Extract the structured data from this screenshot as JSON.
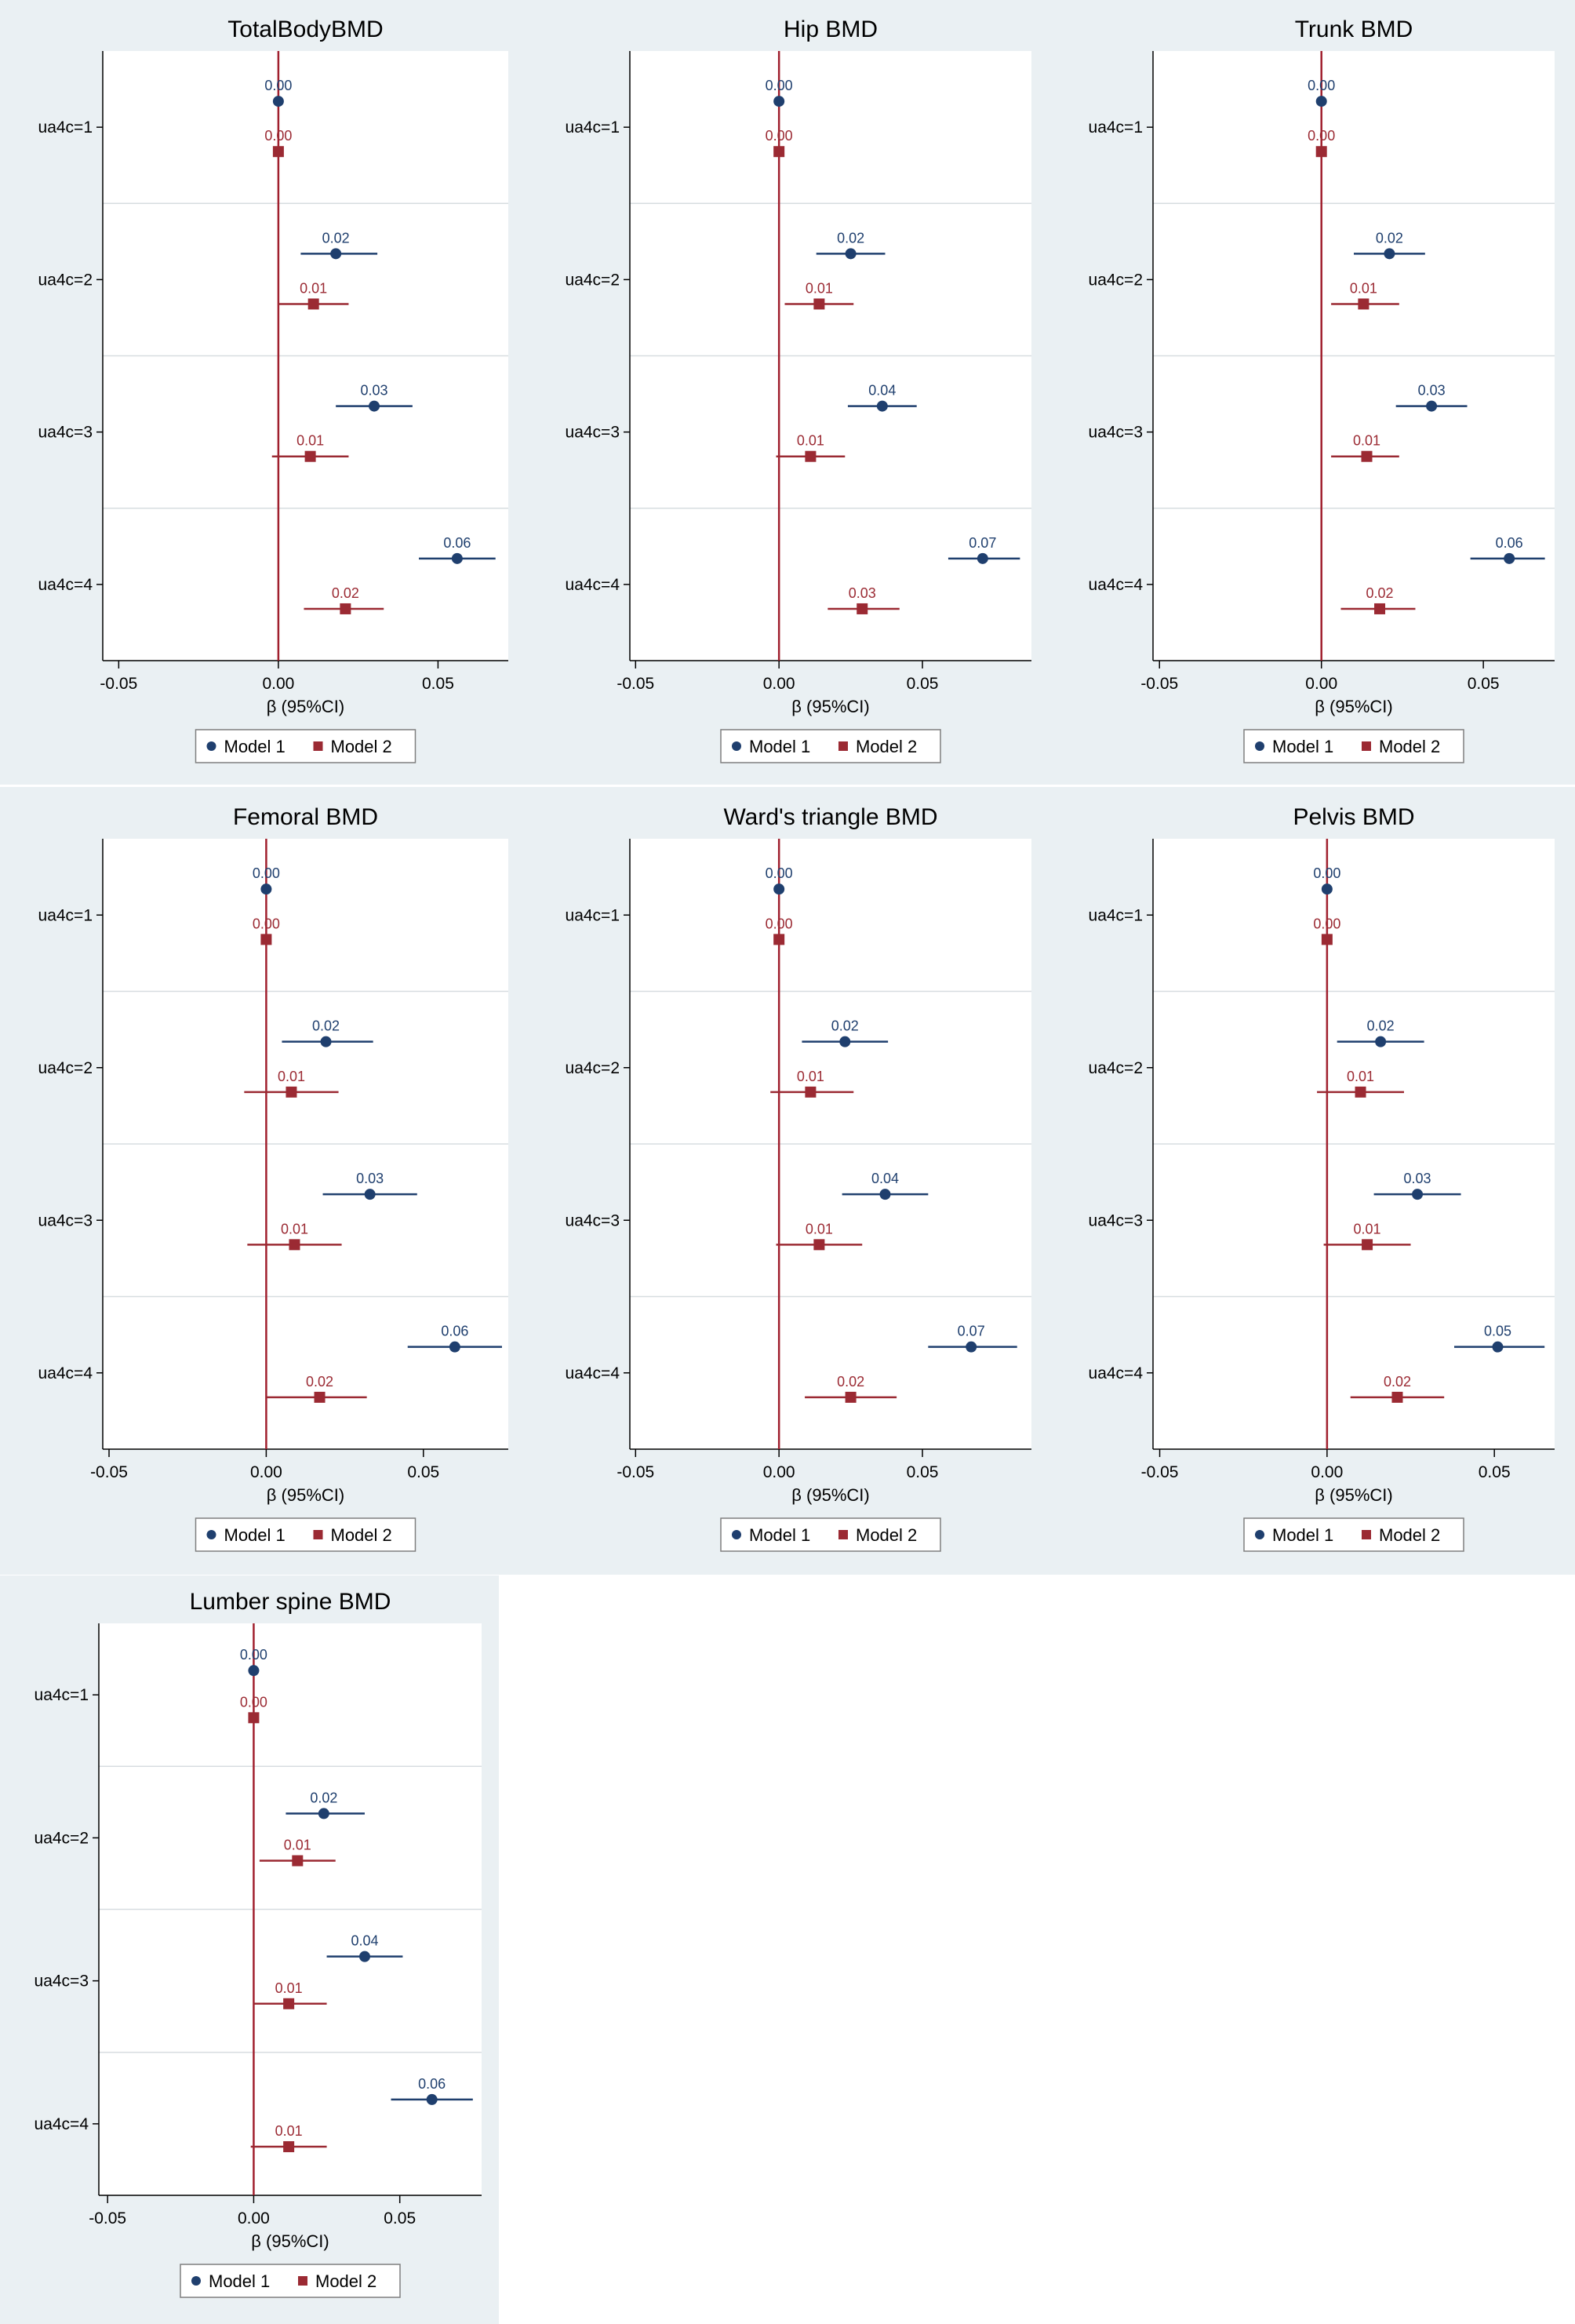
{
  "colors": {
    "model1": "#1f3f6e",
    "model2": "#9b2a33",
    "reference": "#a0202e"
  },
  "chart_data": [
    {
      "type": "forest",
      "title": "TotalBodyBMD",
      "xlabel": "β (95%CI)",
      "xlim": [
        -0.055,
        0.072
      ],
      "xticks": [
        -0.05,
        0.0,
        0.05
      ],
      "xtick_labels": [
        "-0.05",
        "0.00",
        "0.05"
      ],
      "categories": [
        "ua4c=1",
        "ua4c=2",
        "ua4c=3",
        "ua4c=4"
      ],
      "legend": [
        "Model 1",
        "Model 2"
      ],
      "series": [
        {
          "name": "Model 1",
          "marker": "circle",
          "values": [
            0.0,
            0.018,
            0.03,
            0.056
          ],
          "ci_low": [
            0.0,
            0.007,
            0.018,
            0.044
          ],
          "ci_high": [
            0.0,
            0.031,
            0.042,
            0.068
          ],
          "labels": [
            "0.00",
            "0.02",
            "0.03",
            "0.06"
          ]
        },
        {
          "name": "Model 2",
          "marker": "square",
          "values": [
            0.0,
            0.011,
            0.01,
            0.021
          ],
          "ci_low": [
            0.0,
            0.0,
            -0.002,
            0.008
          ],
          "ci_high": [
            0.0,
            0.022,
            0.022,
            0.033
          ],
          "labels": [
            "0.00",
            "0.01",
            "0.01",
            "0.02"
          ]
        }
      ]
    },
    {
      "type": "forest",
      "title": "Hip BMD",
      "xlabel": "β (95%CI)",
      "xlim": [
        -0.052,
        0.088
      ],
      "xticks": [
        -0.05,
        0.0,
        0.05
      ],
      "xtick_labels": [
        "-0.05",
        "0.00",
        "0.05"
      ],
      "categories": [
        "ua4c=1",
        "ua4c=2",
        "ua4c=3",
        "ua4c=4"
      ],
      "legend": [
        "Model 1",
        "Model 2"
      ],
      "series": [
        {
          "name": "Model 1",
          "marker": "circle",
          "values": [
            0.0,
            0.025,
            0.036,
            0.071
          ],
          "ci_low": [
            0.0,
            0.013,
            0.024,
            0.059
          ],
          "ci_high": [
            0.0,
            0.037,
            0.048,
            0.084
          ],
          "labels": [
            "0.00",
            "0.02",
            "0.04",
            "0.07"
          ]
        },
        {
          "name": "Model 2",
          "marker": "square",
          "values": [
            0.0,
            0.014,
            0.011,
            0.029
          ],
          "ci_low": [
            0.0,
            0.002,
            -0.001,
            0.017
          ],
          "ci_high": [
            0.0,
            0.026,
            0.023,
            0.042
          ],
          "labels": [
            "0.00",
            "0.01",
            "0.01",
            "0.03"
          ]
        }
      ]
    },
    {
      "type": "forest",
      "title": "Trunk BMD",
      "xlabel": "β (95%CI)",
      "xlim": [
        -0.052,
        0.072
      ],
      "xticks": [
        -0.05,
        0.0,
        0.05
      ],
      "xtick_labels": [
        "-0.05",
        "0.00",
        "0.05"
      ],
      "categories": [
        "ua4c=1",
        "ua4c=2",
        "ua4c=3",
        "ua4c=4"
      ],
      "legend": [
        "Model 1",
        "Model 2"
      ],
      "series": [
        {
          "name": "Model 1",
          "marker": "circle",
          "values": [
            0.0,
            0.021,
            0.034,
            0.058
          ],
          "ci_low": [
            0.0,
            0.01,
            0.023,
            0.046
          ],
          "ci_high": [
            0.0,
            0.032,
            0.045,
            0.069
          ],
          "labels": [
            "0.00",
            "0.02",
            "0.03",
            "0.06"
          ]
        },
        {
          "name": "Model 2",
          "marker": "square",
          "values": [
            0.0,
            0.013,
            0.014,
            0.018
          ],
          "ci_low": [
            0.0,
            0.003,
            0.003,
            0.006
          ],
          "ci_high": [
            0.0,
            0.024,
            0.024,
            0.029
          ],
          "labels": [
            "0.00",
            "0.01",
            "0.01",
            "0.02"
          ]
        }
      ]
    },
    {
      "type": "forest",
      "title": "Femoral BMD",
      "xlabel": "β (95%CI)",
      "xlim": [
        -0.052,
        0.077
      ],
      "xticks": [
        -0.05,
        0.0,
        0.05
      ],
      "xtick_labels": [
        "-0.05",
        "0.00",
        "0.05"
      ],
      "categories": [
        "ua4c=1",
        "ua4c=2",
        "ua4c=3",
        "ua4c=4"
      ],
      "legend": [
        "Model 1",
        "Model 2"
      ],
      "series": [
        {
          "name": "Model 1",
          "marker": "circle",
          "values": [
            0.0,
            0.019,
            0.033,
            0.06
          ],
          "ci_low": [
            0.0,
            0.005,
            0.018,
            0.045
          ],
          "ci_high": [
            0.0,
            0.034,
            0.048,
            0.075
          ],
          "labels": [
            "0.00",
            "0.02",
            "0.03",
            "0.06"
          ]
        },
        {
          "name": "Model 2",
          "marker": "square",
          "values": [
            0.0,
            0.008,
            0.009,
            0.017
          ],
          "ci_low": [
            0.0,
            -0.007,
            -0.006,
            0.0
          ],
          "ci_high": [
            0.0,
            0.023,
            0.024,
            0.032
          ],
          "labels": [
            "0.00",
            "0.01",
            "0.01",
            "0.02"
          ]
        }
      ]
    },
    {
      "type": "forest",
      "title": "Ward's triangle BMD",
      "xlabel": "β (95%CI)",
      "xlim": [
        -0.052,
        0.088
      ],
      "xticks": [
        -0.05,
        0.0,
        0.05
      ],
      "xtick_labels": [
        "-0.05",
        "0.00",
        "0.05"
      ],
      "categories": [
        "ua4c=1",
        "ua4c=2",
        "ua4c=3",
        "ua4c=4"
      ],
      "legend": [
        "Model 1",
        "Model 2"
      ],
      "series": [
        {
          "name": "Model 1",
          "marker": "circle",
          "values": [
            0.0,
            0.023,
            0.037,
            0.067
          ],
          "ci_low": [
            0.0,
            0.008,
            0.022,
            0.052
          ],
          "ci_high": [
            0.0,
            0.038,
            0.052,
            0.083
          ],
          "labels": [
            "0.00",
            "0.02",
            "0.04",
            "0.07"
          ]
        },
        {
          "name": "Model 2",
          "marker": "square",
          "values": [
            0.0,
            0.011,
            0.014,
            0.025
          ],
          "ci_low": [
            0.0,
            -0.003,
            -0.001,
            0.009
          ],
          "ci_high": [
            0.0,
            0.026,
            0.029,
            0.041
          ],
          "labels": [
            "0.00",
            "0.01",
            "0.01",
            "0.02"
          ]
        }
      ]
    },
    {
      "type": "forest",
      "title": "Pelvis BMD",
      "xlabel": "β (95%CI)",
      "xlim": [
        -0.052,
        0.068
      ],
      "xticks": [
        -0.05,
        0.0,
        0.05
      ],
      "xtick_labels": [
        "-0.05",
        "0.00",
        "0.05"
      ],
      "categories": [
        "ua4c=1",
        "ua4c=2",
        "ua4c=3",
        "ua4c=4"
      ],
      "legend": [
        "Model 1",
        "Model 2"
      ],
      "series": [
        {
          "name": "Model 1",
          "marker": "circle",
          "values": [
            0.0,
            0.016,
            0.027,
            0.051
          ],
          "ci_low": [
            0.0,
            0.003,
            0.014,
            0.038
          ],
          "ci_high": [
            0.0,
            0.029,
            0.04,
            0.065
          ],
          "labels": [
            "0.00",
            "0.02",
            "0.03",
            "0.05"
          ]
        },
        {
          "name": "Model 2",
          "marker": "square",
          "values": [
            0.0,
            0.01,
            0.012,
            0.021
          ],
          "ci_low": [
            0.0,
            -0.003,
            -0.001,
            0.007
          ],
          "ci_high": [
            0.0,
            0.023,
            0.025,
            0.035
          ],
          "labels": [
            "0.00",
            "0.01",
            "0.01",
            "0.02"
          ]
        }
      ]
    },
    {
      "type": "forest",
      "title": "Lumber spine BMD",
      "xlabel": "β (95%CI)",
      "xlim": [
        -0.053,
        0.078
      ],
      "xticks": [
        -0.05,
        0.0,
        0.05
      ],
      "xtick_labels": [
        "-0.05",
        "0.00",
        "0.05"
      ],
      "categories": [
        "ua4c=1",
        "ua4c=2",
        "ua4c=3",
        "ua4c=4"
      ],
      "legend": [
        "Model 1",
        "Model 2"
      ],
      "series": [
        {
          "name": "Model 1",
          "marker": "circle",
          "values": [
            0.0,
            0.024,
            0.038,
            0.061
          ],
          "ci_low": [
            0.0,
            0.011,
            0.025,
            0.047
          ],
          "ci_high": [
            0.0,
            0.038,
            0.051,
            0.075
          ],
          "labels": [
            "0.00",
            "0.02",
            "0.04",
            "0.06"
          ]
        },
        {
          "name": "Model 2",
          "marker": "square",
          "values": [
            0.0,
            0.015,
            0.012,
            0.012
          ],
          "ci_low": [
            0.0,
            0.002,
            0.0,
            -0.001
          ],
          "ci_high": [
            0.0,
            0.028,
            0.025,
            0.025
          ],
          "labels": [
            "0.00",
            "0.01",
            "0.01",
            "0.01"
          ]
        }
      ]
    }
  ]
}
